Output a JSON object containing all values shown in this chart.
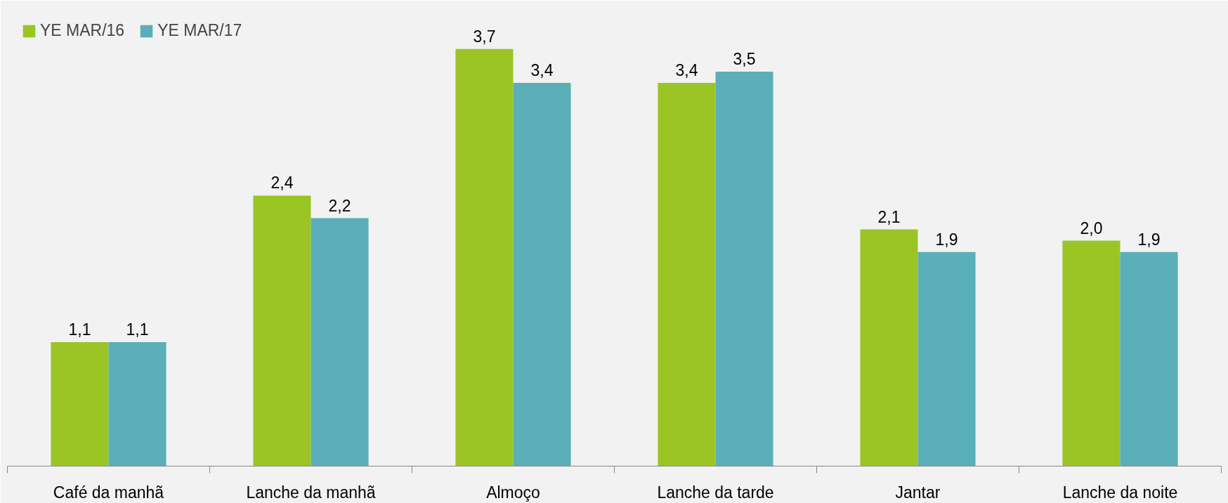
{
  "chart_data": {
    "type": "bar",
    "categories": [
      "Café da manhã",
      "Lanche da manhã",
      "Almoço",
      "Lanche da tarde",
      "Jantar",
      "Lanche da noite"
    ],
    "series": [
      {
        "name": "YE MAR/16",
        "color": "#9ac524",
        "values": [
          1.1,
          2.4,
          3.7,
          3.4,
          2.1,
          2.0
        ],
        "value_labels": [
          "1,1",
          "2,4",
          "3,7",
          "3,4",
          "2,1",
          "2,0"
        ]
      },
      {
        "name": "YE MAR/17",
        "color": "#5aafb8",
        "values": [
          1.1,
          2.2,
          3.4,
          3.5,
          1.9,
          1.9
        ],
        "value_labels": [
          "1,1",
          "2,2",
          "3,4",
          "3,5",
          "1,9",
          "1,9"
        ]
      }
    ],
    "legend": "top left",
    "grid": false
  }
}
